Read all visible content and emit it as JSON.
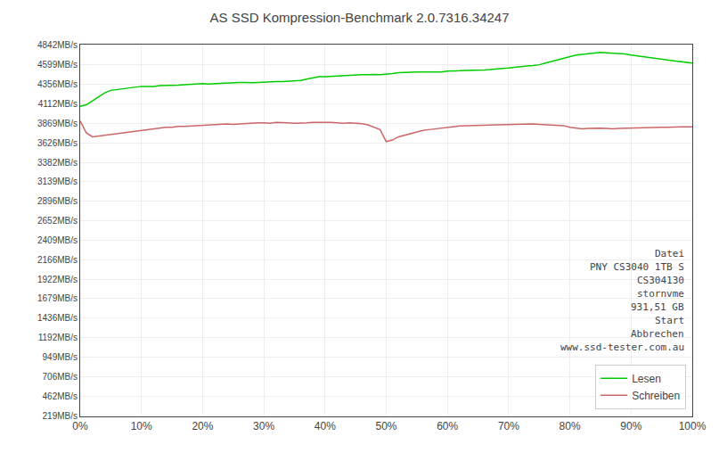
{
  "chart_data": {
    "type": "line",
    "title": "AS SSD Kompression-Benchmark 2.0.7316.34247",
    "x": [
      0,
      1,
      2,
      3,
      4,
      5,
      6,
      7,
      8,
      9,
      10,
      11,
      12,
      13,
      14,
      15,
      16,
      17,
      18,
      19,
      20,
      21,
      22,
      23,
      24,
      25,
      26,
      27,
      28,
      29,
      30,
      31,
      32,
      33,
      34,
      35,
      36,
      37,
      38,
      39,
      40,
      41,
      42,
      43,
      44,
      45,
      46,
      47,
      48,
      49,
      50,
      51,
      52,
      53,
      54,
      55,
      56,
      57,
      58,
      59,
      60,
      61,
      62,
      63,
      64,
      65,
      66,
      67,
      68,
      69,
      70,
      71,
      72,
      73,
      74,
      75,
      76,
      77,
      78,
      79,
      80,
      81,
      82,
      83,
      84,
      85,
      86,
      87,
      88,
      89,
      90,
      91,
      92,
      93,
      94,
      95,
      96,
      97,
      98,
      99,
      100
    ],
    "series": [
      {
        "name": "Lesen",
        "color": "#00cc00",
        "values": [
          4080,
          4100,
          4150,
          4200,
          4250,
          4280,
          4290,
          4300,
          4310,
          4320,
          4330,
          4330,
          4330,
          4340,
          4340,
          4340,
          4345,
          4350,
          4355,
          4360,
          4365,
          4360,
          4365,
          4370,
          4375,
          4375,
          4380,
          4380,
          4375,
          4380,
          4385,
          4385,
          4390,
          4390,
          4395,
          4400,
          4405,
          4420,
          4435,
          4450,
          4450,
          4455,
          4460,
          4465,
          4470,
          4470,
          4475,
          4475,
          4480,
          4475,
          4480,
          4490,
          4500,
          4505,
          4510,
          4510,
          4510,
          4510,
          4515,
          4510,
          4520,
          4520,
          4525,
          4530,
          4530,
          4530,
          4535,
          4540,
          4550,
          4555,
          4560,
          4570,
          4580,
          4585,
          4590,
          4600,
          4620,
          4640,
          4660,
          4680,
          4700,
          4720,
          4730,
          4740,
          4750,
          4755,
          4750,
          4745,
          4740,
          4735,
          4720,
          4710,
          4700,
          4690,
          4680,
          4670,
          4660,
          4650,
          4640,
          4630,
          4620
        ]
      },
      {
        "name": "Schreiben",
        "color": "#cc6666",
        "values": [
          3900,
          3750,
          3700,
          3710,
          3720,
          3730,
          3740,
          3750,
          3760,
          3770,
          3780,
          3790,
          3800,
          3810,
          3820,
          3820,
          3830,
          3830,
          3835,
          3840,
          3845,
          3850,
          3855,
          3855,
          3860,
          3855,
          3860,
          3870,
          3875,
          3875,
          3875,
          3870,
          3880,
          3880,
          3875,
          3870,
          3870,
          3875,
          3880,
          3880,
          3885,
          3880,
          3875,
          3870,
          3875,
          3870,
          3865,
          3850,
          3820,
          3790,
          3640,
          3660,
          3700,
          3720,
          3740,
          3760,
          3780,
          3790,
          3800,
          3810,
          3820,
          3830,
          3835,
          3840,
          3840,
          3842,
          3845,
          3848,
          3850,
          3852,
          3855,
          3855,
          3858,
          3860,
          3860,
          3855,
          3850,
          3848,
          3845,
          3840,
          3820,
          3810,
          3800,
          3805,
          3810,
          3808,
          3805,
          3800,
          3805,
          3808,
          3810,
          3810,
          3815,
          3815,
          3820,
          3820,
          3820,
          3825,
          3825,
          3825,
          3825
        ]
      }
    ],
    "xlim": [
      0,
      100
    ],
    "xticks": [
      {
        "value": 0,
        "label": "0%"
      },
      {
        "value": 10,
        "label": "10%"
      },
      {
        "value": 20,
        "label": "20%"
      },
      {
        "value": 30,
        "label": "30%"
      },
      {
        "value": 40,
        "label": "40%"
      },
      {
        "value": 50,
        "label": "50%"
      },
      {
        "value": 60,
        "label": "60%"
      },
      {
        "value": 70,
        "label": "70%"
      },
      {
        "value": 80,
        "label": "80%"
      },
      {
        "value": 90,
        "label": "90%"
      },
      {
        "value": 100,
        "label": "100%"
      }
    ],
    "ylim": [
      209,
      4852
    ],
    "yticks": [
      {
        "value": 4842,
        "label": "4842MB/s"
      },
      {
        "value": 4599,
        "label": "4599MB/s"
      },
      {
        "value": 4356,
        "label": "4356MB/s"
      },
      {
        "value": 4112,
        "label": "4112MB/s"
      },
      {
        "value": 3869,
        "label": "3869MB/s"
      },
      {
        "value": 3626,
        "label": "3626MB/s"
      },
      {
        "value": 3382,
        "label": "3382MB/s"
      },
      {
        "value": 3139,
        "label": "3139MB/s"
      },
      {
        "value": 2896,
        "label": "2896MB/s"
      },
      {
        "value": 2652,
        "label": "2652MB/s"
      },
      {
        "value": 2409,
        "label": "2409MB/s"
      },
      {
        "value": 2166,
        "label": "2166MB/s"
      },
      {
        "value": 1922,
        "label": "1922MB/s"
      },
      {
        "value": 1679,
        "label": "1679MB/s"
      },
      {
        "value": 1436,
        "label": "1436MB/s"
      },
      {
        "value": 1192,
        "label": "1192MB/s"
      },
      {
        "value": 949,
        "label": "949MB/s"
      },
      {
        "value": 706,
        "label": "706MB/s"
      },
      {
        "value": 462,
        "label": "462MB/s"
      },
      {
        "value": 219,
        "label": "219MB/s"
      }
    ],
    "grid": true,
    "legend": "lower right",
    "annotations": [
      "Datei",
      "PNY CS3040 1TB S",
      "CS304130",
      "stornvme",
      "931,51 GB",
      "Start",
      "Abbrechen",
      "www.ssd-tester.com.au"
    ]
  }
}
